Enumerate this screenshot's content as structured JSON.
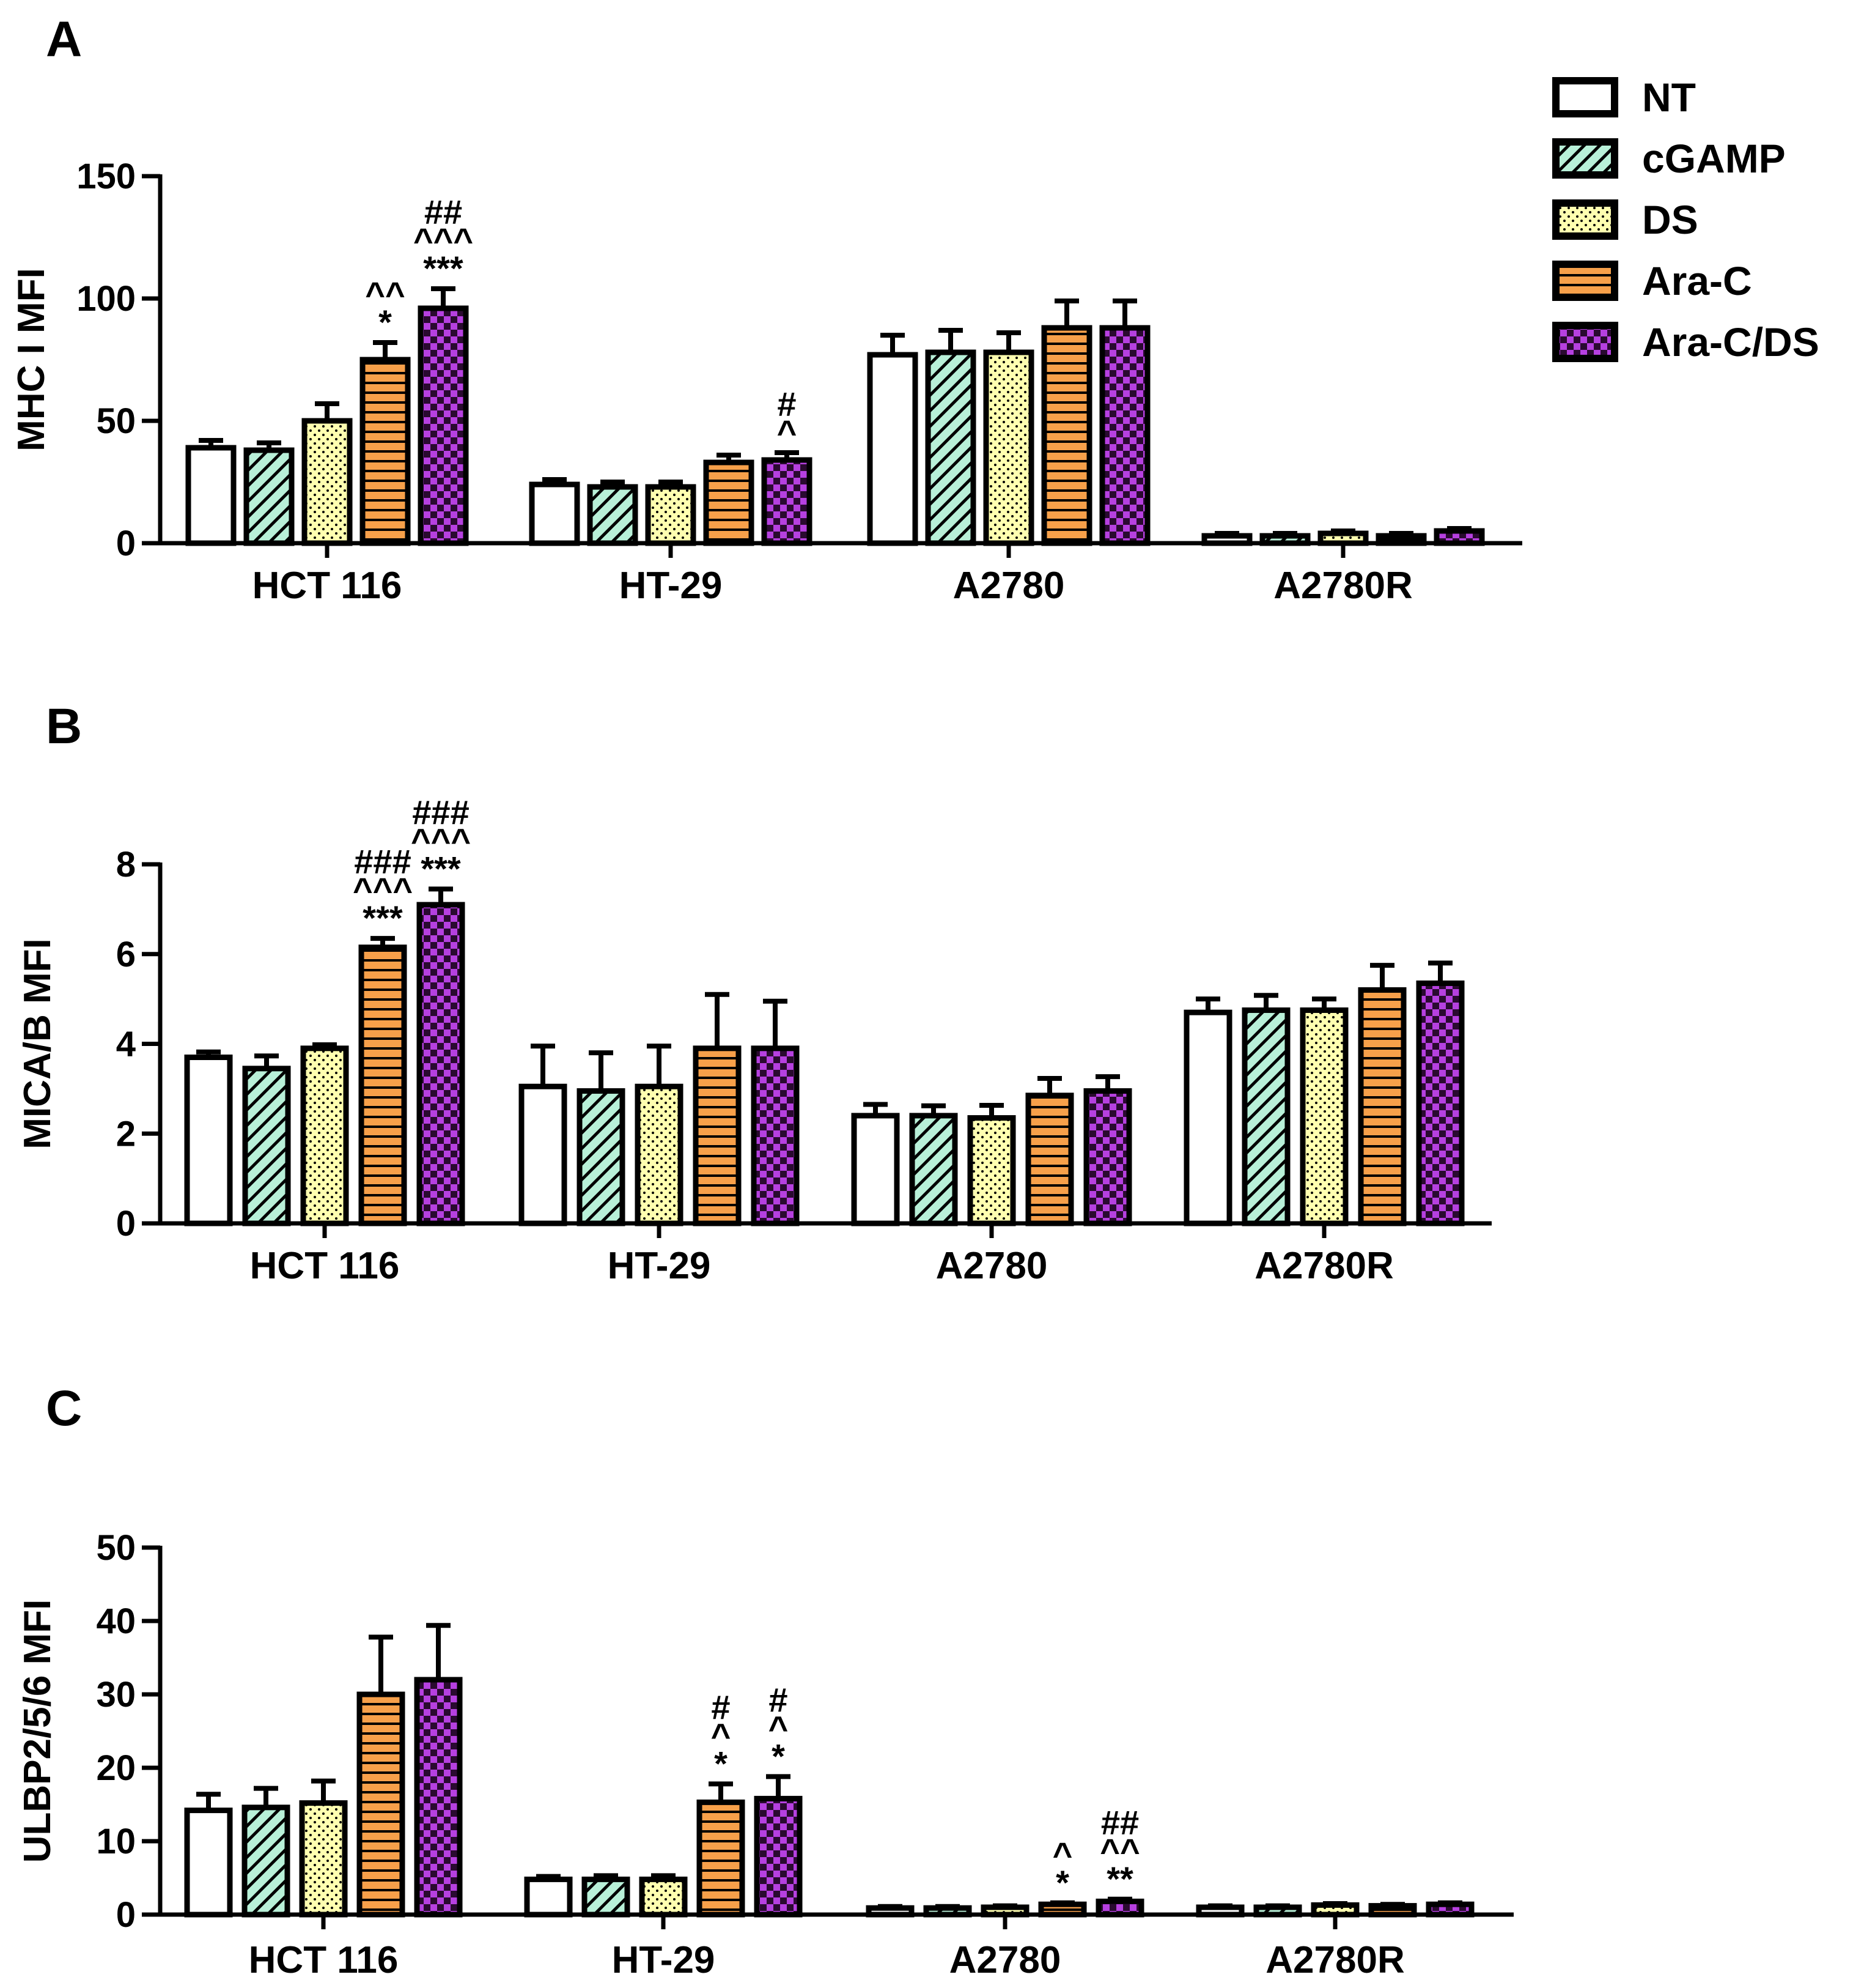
{
  "legend": [
    {
      "name": "NT",
      "pattern": "white"
    },
    {
      "name": "cGAMP",
      "pattern": "diag"
    },
    {
      "name": "DS",
      "pattern": "dots"
    },
    {
      "name": "Ara-C",
      "pattern": "hstripe"
    },
    {
      "name": "Ara-C/DS",
      "pattern": "checker"
    }
  ],
  "colors": {
    "NT": "#ffffff",
    "cGAMP": "#b8f0d8",
    "DS": "#ffffb0",
    "Ara-C": "#f7a04a",
    "Ara-C/DS": "#b640e0",
    "axis": "#000000"
  },
  "chart_data": [
    {
      "panel": "A",
      "type": "bar",
      "ylabel": "MHC I MFI",
      "ylim": [
        0,
        150
      ],
      "yticks": [
        0,
        50,
        100,
        150
      ],
      "categories": [
        "HCT 116",
        "HT-29",
        "A2780",
        "A2780R"
      ],
      "series": [
        {
          "name": "NT",
          "values": [
            39,
            24,
            77,
            3
          ],
          "errors": [
            3,
            2,
            8,
            1
          ]
        },
        {
          "name": "cGAMP",
          "values": [
            38,
            23,
            78,
            3
          ],
          "errors": [
            3,
            2,
            9,
            1
          ]
        },
        {
          "name": "DS",
          "values": [
            50,
            23,
            78,
            4
          ],
          "errors": [
            7,
            2,
            8,
            1
          ]
        },
        {
          "name": "Ara-C",
          "values": [
            75,
            33,
            88,
            3
          ],
          "errors": [
            7,
            3,
            11,
            1
          ]
        },
        {
          "name": "Ara-C/DS",
          "values": [
            96,
            34,
            88,
            5
          ],
          "errors": [
            8,
            3,
            11,
            1
          ]
        }
      ],
      "annotations": [
        {
          "category": "HCT 116",
          "series": "Ara-C",
          "lines": [
            "^^",
            "*"
          ]
        },
        {
          "category": "HCT 116",
          "series": "Ara-C/DS",
          "lines": [
            "##",
            "^^^",
            "***"
          ]
        },
        {
          "category": "HT-29",
          "series": "Ara-C/DS",
          "lines": [
            "#",
            "^"
          ]
        }
      ]
    },
    {
      "panel": "B",
      "type": "bar",
      "ylabel": "MICA/B MFI",
      "ylim": [
        0,
        8
      ],
      "yticks": [
        0,
        2,
        4,
        6,
        8
      ],
      "categories": [
        "HCT 116",
        "HT-29",
        "A2780",
        "A2780R"
      ],
      "series": [
        {
          "name": "NT",
          "values": [
            3.7,
            3.05,
            2.4,
            4.7
          ],
          "errors": [
            0.12,
            0.9,
            0.25,
            0.3
          ]
        },
        {
          "name": "cGAMP",
          "values": [
            3.45,
            2.95,
            2.4,
            4.75
          ],
          "errors": [
            0.28,
            0.85,
            0.22,
            0.33
          ]
        },
        {
          "name": "DS",
          "values": [
            3.9,
            3.05,
            2.35,
            4.75
          ],
          "errors": [
            0.08,
            0.9,
            0.28,
            0.25
          ]
        },
        {
          "name": "Ara-C",
          "values": [
            6.15,
            3.9,
            2.85,
            5.2
          ],
          "errors": [
            0.2,
            1.2,
            0.38,
            0.55
          ]
        },
        {
          "name": "Ara-C/DS",
          "values": [
            7.1,
            3.9,
            2.95,
            5.35
          ],
          "errors": [
            0.35,
            1.05,
            0.32,
            0.45
          ]
        }
      ],
      "annotations": [
        {
          "category": "HCT 116",
          "series": "Ara-C",
          "lines": [
            "###",
            "^^^",
            "***"
          ]
        },
        {
          "category": "HCT 116",
          "series": "Ara-C/DS",
          "lines": [
            "###",
            "^^^",
            "***"
          ]
        }
      ]
    },
    {
      "panel": "C",
      "type": "bar",
      "ylabel": "ULBP2/5/6 MFI",
      "ylim": [
        0,
        50
      ],
      "yticks": [
        0,
        10,
        20,
        30,
        40,
        50
      ],
      "categories": [
        "HCT 116",
        "HT-29",
        "A2780",
        "A2780R"
      ],
      "series": [
        {
          "name": "NT",
          "values": [
            14.2,
            4.8,
            0.9,
            1.0
          ],
          "errors": [
            2.2,
            0.4,
            0.2,
            0.2
          ]
        },
        {
          "name": "cGAMP",
          "values": [
            14.6,
            4.8,
            0.9,
            1.0
          ],
          "errors": [
            2.6,
            0.5,
            0.2,
            0.2
          ]
        },
        {
          "name": "DS",
          "values": [
            15.2,
            4.8,
            1.0,
            1.3
          ],
          "errors": [
            3.0,
            0.5,
            0.2,
            0.2
          ]
        },
        {
          "name": "Ara-C",
          "values": [
            30,
            15.3,
            1.4,
            1.2
          ],
          "errors": [
            7.8,
            2.5,
            0.2,
            0.2
          ]
        },
        {
          "name": "Ara-C/DS",
          "values": [
            32,
            15.8,
            1.8,
            1.4
          ],
          "errors": [
            7.4,
            3.0,
            0.3,
            0.2
          ]
        }
      ],
      "annotations": [
        {
          "category": "HT-29",
          "series": "Ara-C",
          "lines": [
            "#",
            "^",
            "*"
          ]
        },
        {
          "category": "HT-29",
          "series": "Ara-C/DS",
          "lines": [
            "#",
            "^",
            "*"
          ]
        },
        {
          "category": "A2780",
          "series": "Ara-C",
          "lines": [
            "^",
            "*"
          ]
        },
        {
          "category": "A2780",
          "series": "Ara-C/DS",
          "lines": [
            "##",
            "^^",
            "**"
          ]
        }
      ]
    }
  ]
}
